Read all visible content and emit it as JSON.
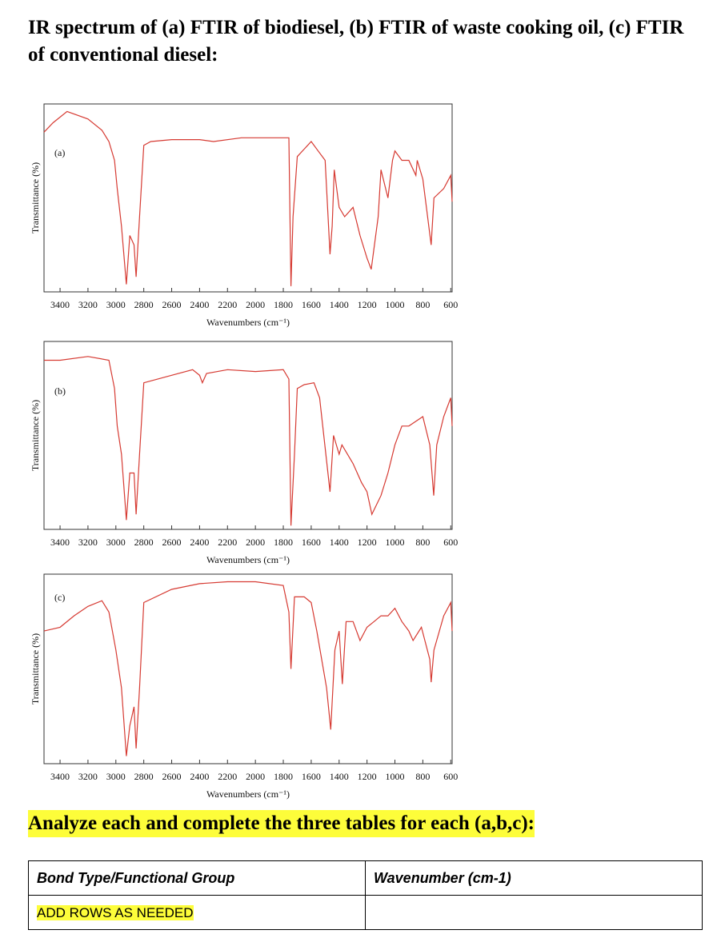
{
  "title": "IR spectrum of (a) FTIR of biodiesel, (b) FTIR of waste cooking oil, (c) FTIR of conventional diesel:",
  "chart_data": [
    {
      "type": "line",
      "panel_label": "(a)",
      "xlabel": "Wavenumbers (cm⁻¹)",
      "ylabel": "Transmittance (%)",
      "xlim": [
        3515,
        590
      ],
      "ylim": [
        0,
        100
      ],
      "xticks": [
        3400,
        3200,
        3000,
        2800,
        2600,
        2400,
        2200,
        2000,
        1800,
        1600,
        1400,
        1200,
        1000,
        800,
        600
      ],
      "x": [
        3515,
        3450,
        3350,
        3200,
        3100,
        3050,
        3010,
        2990,
        2960,
        2925,
        2900,
        2870,
        2855,
        2830,
        2800,
        2750,
        2600,
        2400,
        2300,
        2100,
        1900,
        1760,
        1745,
        1730,
        1700,
        1650,
        1600,
        1550,
        1500,
        1465,
        1450,
        1435,
        1400,
        1360,
        1300,
        1250,
        1200,
        1170,
        1120,
        1100,
        1050,
        1017,
        1000,
        950,
        900,
        850,
        840,
        800,
        740,
        720,
        650,
        600,
        590
      ],
      "series": [
        {
          "color": "#d63a32",
          "values": [
            85,
            90,
            96,
            92,
            86,
            80,
            70,
            55,
            35,
            4,
            30,
            25,
            8,
            40,
            78,
            80,
            81,
            81,
            80,
            82,
            82,
            82,
            3,
            40,
            72,
            76,
            80,
            75,
            70,
            20,
            35,
            65,
            45,
            40,
            45,
            30,
            18,
            12,
            40,
            65,
            50,
            70,
            75,
            70,
            70,
            62,
            70,
            60,
            25,
            50,
            55,
            62,
            48
          ]
        }
      ]
    },
    {
      "type": "line",
      "panel_label": "(b)",
      "xlabel": "Wavenumbers (cm⁻¹)",
      "ylabel": "Transmittance (%)",
      "xlim": [
        3515,
        590
      ],
      "ylim": [
        0,
        100
      ],
      "xticks": [
        3400,
        3200,
        3000,
        2800,
        2600,
        2400,
        2200,
        2000,
        1800,
        1600,
        1400,
        1200,
        1000,
        800,
        600
      ],
      "x": [
        3515,
        3400,
        3200,
        3050,
        3010,
        2990,
        2960,
        2925,
        2900,
        2870,
        2855,
        2830,
        2800,
        2600,
        2450,
        2400,
        2380,
        2350,
        2200,
        2000,
        1800,
        1760,
        1745,
        1720,
        1700,
        1650,
        1580,
        1540,
        1465,
        1440,
        1400,
        1380,
        1300,
        1240,
        1200,
        1165,
        1100,
        1050,
        1000,
        950,
        900,
        800,
        750,
        722,
        700,
        650,
        600,
        590
      ],
      "series": [
        {
          "color": "#d63a32",
          "values": [
            90,
            90,
            92,
            90,
            75,
            55,
            40,
            5,
            30,
            30,
            8,
            40,
            78,
            82,
            85,
            82,
            78,
            83,
            85,
            84,
            85,
            80,
            2,
            40,
            75,
            77,
            78,
            70,
            20,
            50,
            40,
            45,
            35,
            25,
            20,
            8,
            18,
            30,
            45,
            55,
            55,
            60,
            45,
            18,
            45,
            60,
            70,
            55
          ]
        }
      ]
    },
    {
      "type": "line",
      "panel_label": "(c)",
      "xlabel": "Wavenumbers (cm⁻¹)",
      "ylabel": "Transmittance (%)",
      "xlim": [
        3515,
        590
      ],
      "ylim": [
        0,
        100
      ],
      "xticks": [
        3400,
        3200,
        3000,
        2800,
        2600,
        2400,
        2200,
        2000,
        1800,
        1600,
        1400,
        1200,
        1000,
        800,
        600
      ],
      "x": [
        3515,
        3400,
        3300,
        3200,
        3100,
        3050,
        3000,
        2960,
        2925,
        2900,
        2870,
        2855,
        2830,
        2800,
        2600,
        2400,
        2200,
        2000,
        1800,
        1760,
        1745,
        1720,
        1650,
        1600,
        1560,
        1490,
        1460,
        1430,
        1400,
        1377,
        1350,
        1300,
        1250,
        1200,
        1150,
        1100,
        1050,
        1000,
        950,
        900,
        870,
        810,
        750,
        740,
        720,
        650,
        600,
        590
      ],
      "series": [
        {
          "color": "#d63a32",
          "values": [
            70,
            72,
            78,
            83,
            86,
            80,
            60,
            40,
            4,
            20,
            30,
            8,
            40,
            85,
            92,
            95,
            96,
            96,
            94,
            80,
            50,
            88,
            88,
            85,
            70,
            40,
            18,
            60,
            70,
            42,
            75,
            75,
            65,
            72,
            75,
            78,
            78,
            82,
            75,
            70,
            65,
            72,
            55,
            43,
            60,
            78,
            85,
            70
          ]
        }
      ]
    }
  ],
  "instruction": "Analyze each and complete the three tables for each (a,b,c):",
  "table": {
    "header": [
      "Bond Type/Functional Group",
      "Wavenumber (cm-1)"
    ],
    "rows": [
      [
        "ADD ROWS AS NEEDED"
      ]
    ]
  }
}
